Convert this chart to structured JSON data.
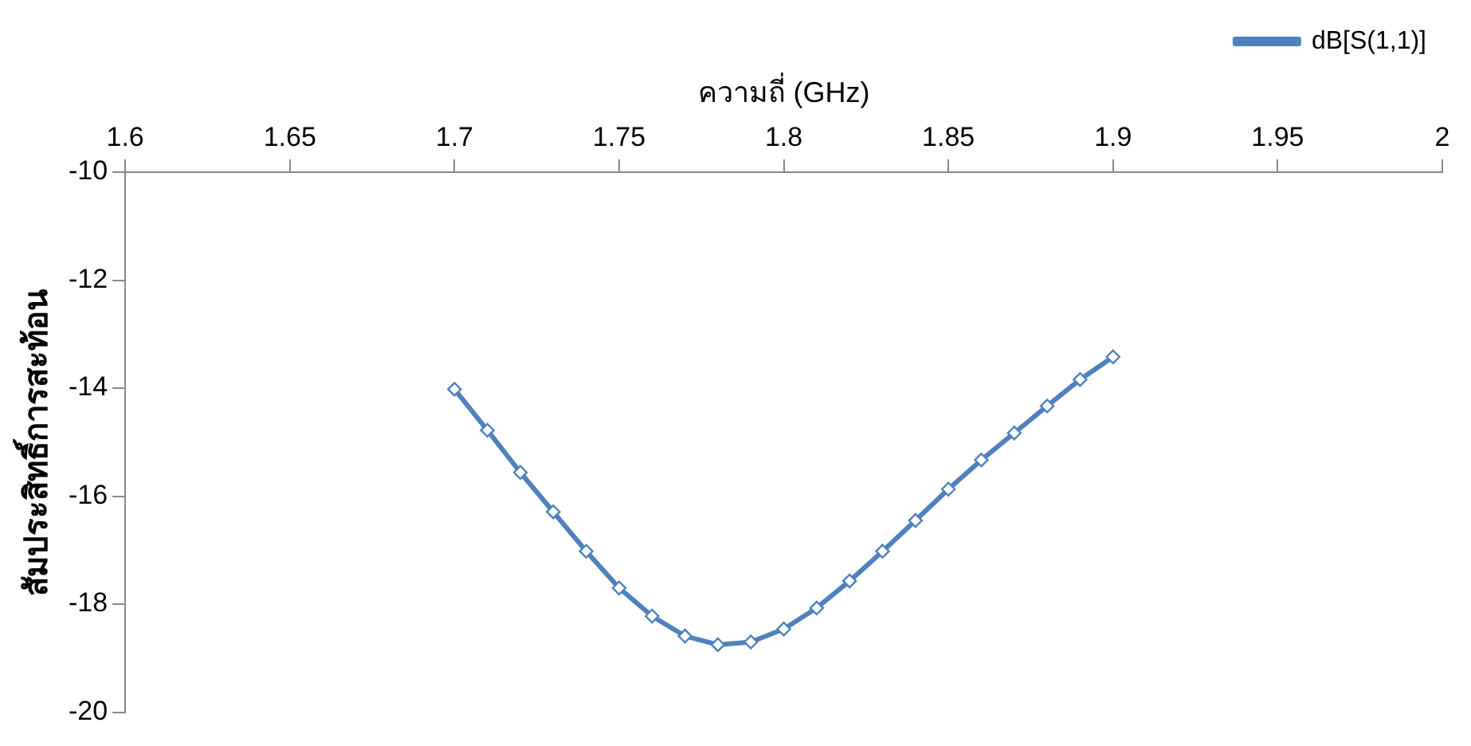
{
  "chart_data": {
    "type": "line",
    "xlabel": "ความถี่ (GHz)",
    "ylabel": "สัมประสิทธิ์การสะท้อน",
    "x": [
      1.7,
      1.71,
      1.72,
      1.73,
      1.74,
      1.75,
      1.76,
      1.77,
      1.78,
      1.79,
      1.8,
      1.81,
      1.82,
      1.83,
      1.84,
      1.85,
      1.86,
      1.87,
      1.88,
      1.89,
      1.9
    ],
    "series": [
      {
        "name": "dB[S(1,1)]",
        "color": "#4f81bd",
        "values": [
          -14.02,
          -14.78,
          -15.56,
          -16.29,
          -17.02,
          -17.7,
          -18.22,
          -18.59,
          -18.75,
          -18.7,
          -18.46,
          -18.07,
          -17.57,
          -17.02,
          -16.45,
          -15.87,
          -15.33,
          -14.83,
          -14.33,
          -13.84,
          -13.42
        ]
      }
    ],
    "xlim": [
      1.6,
      2
    ],
    "xticks": [
      1.6,
      1.65,
      1.7,
      1.75,
      1.8,
      1.85,
      1.9,
      1.95,
      2
    ],
    "ylim": [
      -20,
      -10
    ],
    "yticks": [
      -20,
      -18,
      -16,
      -14,
      -12,
      -10
    ],
    "grid": false,
    "legend": "top right",
    "marker": "diamond",
    "line_style": "solid"
  }
}
